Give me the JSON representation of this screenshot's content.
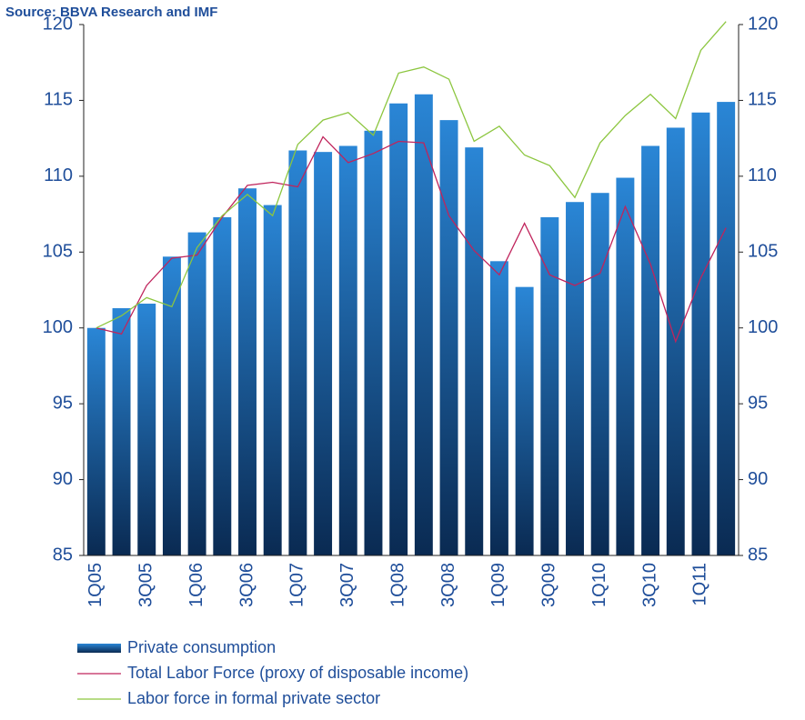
{
  "chart_data": {
    "type": "bar-line",
    "source": "Source: BBVA Research and IMF",
    "categories": [
      "1Q05",
      null,
      "3Q05",
      null,
      "1Q06",
      null,
      "3Q06",
      null,
      "1Q07",
      null,
      "3Q07",
      null,
      "1Q08",
      null,
      "3Q08",
      null,
      "1Q09",
      null,
      "3Q09",
      null,
      "1Q10",
      null,
      "3Q10",
      null,
      "1Q11",
      null
    ],
    "series": [
      {
        "name": "Private consumption",
        "type": "bar",
        "color": "#1c6fbd",
        "values": [
          100,
          101.3,
          101.6,
          104.7,
          106.3,
          107.3,
          109.2,
          108.1,
          111.7,
          111.6,
          112,
          113,
          114.8,
          115.4,
          113.7,
          111.9,
          104.4,
          102.7,
          107.3,
          108.3,
          108.9,
          109.9,
          112,
          113.2,
          114.2,
          114.9
        ]
      },
      {
        "name": "Total Labor Force (proxy of disposable income)",
        "type": "line",
        "color": "#c0245c",
        "values": [
          100,
          99.6,
          102.8,
          104.6,
          104.8,
          107.3,
          109.4,
          109.6,
          109.3,
          112.6,
          110.9,
          111.5,
          112.3,
          112.2,
          107.4,
          105.1,
          103.5,
          106.9,
          103.5,
          102.8,
          103.6,
          108,
          104.2,
          99.1,
          103.3,
          106.6
        ]
      },
      {
        "name": "Labor force in formal private sector",
        "type": "line",
        "color": "#8cc63f",
        "values": [
          100,
          100.8,
          102,
          101.4,
          105.3,
          107.4,
          108.8,
          107.4,
          112.1,
          113.7,
          114.2,
          112.7,
          116.8,
          117.2,
          116.4,
          112.3,
          113.3,
          111.4,
          110.7,
          108.6,
          112.2,
          114,
          115.4,
          113.8,
          118.3,
          120.2
        ]
      }
    ],
    "ylim": [
      85,
      120
    ],
    "yticks": [
      85,
      90,
      95,
      100,
      105,
      110,
      115,
      120
    ],
    "y2lim": [
      85,
      120
    ],
    "y2ticks": [
      85,
      90,
      95,
      100,
      105,
      110,
      115,
      120
    ]
  }
}
